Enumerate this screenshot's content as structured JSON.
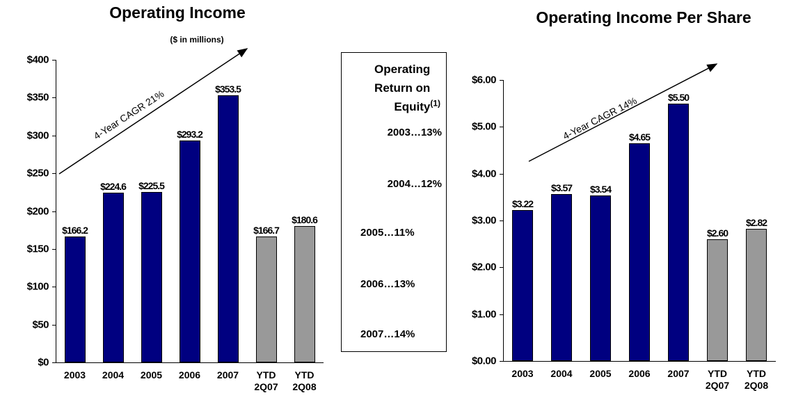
{
  "chart_data": [
    {
      "type": "bar",
      "title": "Operating Income",
      "subtitle": "($ in  millions)",
      "annotation": "4-Year CAGR 21%",
      "categories": [
        "2003",
        "2004",
        "2005",
        "2006",
        "2007",
        "YTD 2Q07",
        "YTD 2Q08"
      ],
      "values": [
        166.2,
        224.6,
        225.5,
        293.2,
        353.5,
        166.7,
        180.6
      ],
      "value_labels": [
        "$166.2",
        "$224.6",
        "$225.5",
        "$293.2",
        "$353.5",
        "$166.7",
        "$180.6"
      ],
      "colors": [
        "#000080",
        "#000080",
        "#000080",
        "#000080",
        "#000080",
        "#999999",
        "#999999"
      ],
      "ylim": [
        0,
        400
      ],
      "yticks": [
        {
          "value": 0,
          "label": "$0"
        },
        {
          "value": 50,
          "label": "$50"
        },
        {
          "value": 100,
          "label": "$100"
        },
        {
          "value": 150,
          "label": "$150"
        },
        {
          "value": 200,
          "label": "$200"
        },
        {
          "value": 250,
          "label": "$250"
        },
        {
          "value": 300,
          "label": "$300"
        },
        {
          "value": 350,
          "label": "$350"
        },
        {
          "value": 400,
          "label": "$400"
        }
      ],
      "grid": false
    },
    {
      "type": "bar",
      "title": "Operating Income Per Share",
      "annotation": "4-Year CAGR 14%",
      "categories": [
        "2003",
        "2004",
        "2005",
        "2006",
        "2007",
        "YTD 2Q07",
        "YTD 2Q08"
      ],
      "values": [
        3.22,
        3.57,
        3.54,
        4.65,
        5.5,
        2.6,
        2.82
      ],
      "value_labels": [
        "$3.22",
        "$3.57",
        "$3.54",
        "$4.65",
        "$5.50",
        "$2.60",
        "$2.82"
      ],
      "colors": [
        "#000080",
        "#000080",
        "#000080",
        "#000080",
        "#000080",
        "#999999",
        "#999999"
      ],
      "ylim": [
        0,
        6
      ],
      "yticks": [
        {
          "value": 0,
          "label": "$0.00"
        },
        {
          "value": 1,
          "label": "$1.00"
        },
        {
          "value": 2,
          "label": "$2.00"
        },
        {
          "value": 3,
          "label": "$3.00"
        },
        {
          "value": 4,
          "label": "$4.00"
        },
        {
          "value": 5,
          "label": "$5.00"
        },
        {
          "value": 6,
          "label": "$6.00"
        }
      ],
      "grid": false
    }
  ],
  "roe_box": {
    "title": "Operating Return on Equity",
    "footnote_mark": "(1)",
    "items": [
      "2003…13%",
      "2004…12%",
      "2005…11%",
      "2006…13%",
      "2007…14%"
    ]
  }
}
